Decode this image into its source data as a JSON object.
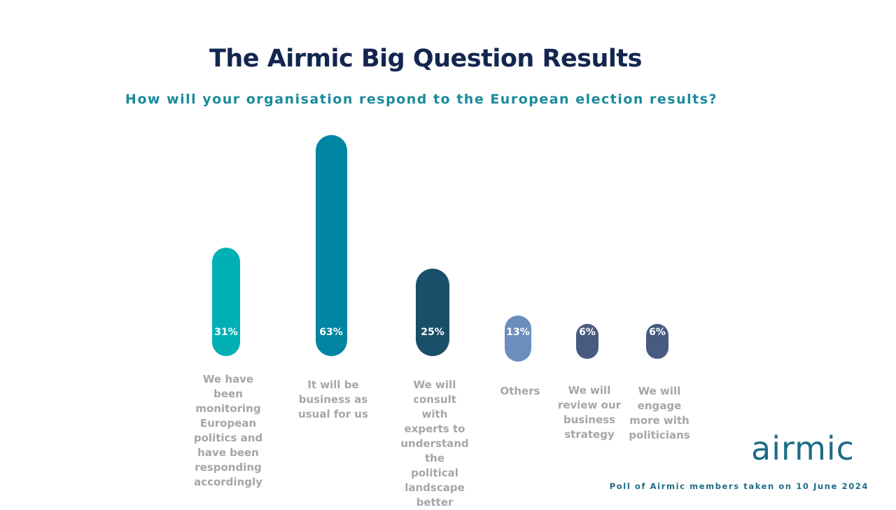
{
  "chart_data": {
    "type": "bar",
    "title": "The Airmic Big Question Results",
    "subtitle": "How will your organisation respond to the European election results?",
    "categories": [
      "We have been monitoring European politics and have been responding accordingly",
      "It will be business as usual for us",
      "We will consult with experts to understand the political landscape better",
      "Others",
      "We will review our business strategy",
      "We will engage more with politicians"
    ],
    "values": [
      31,
      63,
      25,
      13,
      6,
      6
    ],
    "value_labels": [
      "31%",
      "63%",
      "25%",
      "13%",
      "6%",
      "6%"
    ],
    "colors": [
      "#00b0b5",
      "#0085a3",
      "#1a4f6a",
      "#6a8fbf",
      "#475a7f",
      "#475a7f"
    ],
    "ylim": [
      0,
      63
    ],
    "legend": "none",
    "grid": false
  },
  "branding": {
    "logo_text": "airmic"
  },
  "footer": {
    "note": "Poll of Airmic members taken on 10 June 2024"
  }
}
